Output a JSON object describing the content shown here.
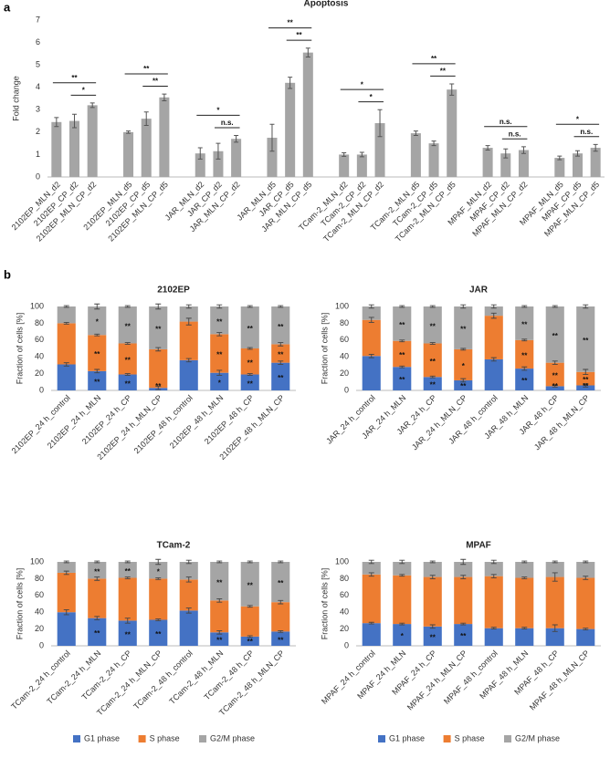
{
  "panel_labels": [
    "a",
    "b"
  ],
  "chart_data": [
    {
      "type": "bar",
      "title": "Apoptosis",
      "y_label": "Fold change",
      "color": "#a5a5a5",
      "group_size": 3,
      "categories": [
        "2102EP_MLN_d2",
        "2102EP_CP_d2",
        "2102EP_MLN_CP_d2",
        "2102EP_MLN_d5",
        "2102EP_CP_d5",
        "2102EP_MLN_CP_d5",
        "JAR_MLN_d2",
        "JAR_CP_d2",
        "JAR_MLN_CP_d2",
        "JAR_MLN_d5",
        "JAR_CP_d5",
        "JAR_MLN_CP_d5",
        "TCam-2_MLN_d2",
        "TCam-2_CP_d2",
        "TCam-2_MLN_CP_d2",
        "TCam-2_MLN_d5",
        "TCam-2_CP_d5",
        "TCam-2_MLN_CP_d5",
        "MPAF_MLN_d2",
        "MPAF_CP_d2",
        "MPAF_MLN_CP_d2",
        "MPAF_MLN_d5",
        "MPAF_CP_d5",
        "MPAF_MLN_CP_d5"
      ],
      "values": [
        2.45,
        2.5,
        3.2,
        2.0,
        2.6,
        3.55,
        1.05,
        1.15,
        1.7,
        1.75,
        4.2,
        5.55,
        1.0,
        1.0,
        2.4,
        1.95,
        1.5,
        3.9,
        1.3,
        1.05,
        1.2,
        0.85,
        1.05,
        1.3
      ],
      "errors": [
        0.2,
        0.3,
        0.1,
        0.05,
        0.3,
        0.15,
        0.25,
        0.35,
        0.15,
        0.6,
        0.25,
        0.2,
        0.08,
        0.1,
        0.6,
        0.1,
        0.1,
        0.25,
        0.1,
        0.2,
        0.15,
        0.08,
        0.12,
        0.15
      ],
      "ylim": [
        0,
        7
      ],
      "yticks": [
        0,
        1,
        2,
        3,
        4,
        5,
        6,
        7
      ],
      "annotations": [
        {
          "from": 0,
          "to": 2,
          "label": "**"
        },
        {
          "from": 1,
          "to": 2,
          "label": "*"
        },
        {
          "from": 3,
          "to": 5,
          "label": "**"
        },
        {
          "from": 4,
          "to": 5,
          "label": "**"
        },
        {
          "from": 6,
          "to": 8,
          "label": "*"
        },
        {
          "from": 7,
          "to": 8,
          "label": "n.s."
        },
        {
          "from": 9,
          "to": 11,
          "label": "**"
        },
        {
          "from": 10,
          "to": 11,
          "label": "**"
        },
        {
          "from": 12,
          "to": 14,
          "label": "*"
        },
        {
          "from": 13,
          "to": 14,
          "label": "*"
        },
        {
          "from": 15,
          "to": 17,
          "label": "**"
        },
        {
          "from": 16,
          "to": 17,
          "label": "**"
        },
        {
          "from": 18,
          "to": 20,
          "label": "n.s."
        },
        {
          "from": 19,
          "to": 20,
          "label": "n.s."
        },
        {
          "from": 21,
          "to": 23,
          "label": "*"
        },
        {
          "from": 22,
          "to": 23,
          "label": "n.s."
        }
      ]
    },
    {
      "type": "stacked_bar",
      "title": "2102EP",
      "y_label": "Fraction of cells [%]",
      "ylim": [
        0,
        100
      ],
      "yticks": [
        0,
        20,
        40,
        60,
        80,
        100
      ],
      "categories": [
        "2102EP_24 h_control",
        "2102EP_24 h_MLN",
        "2102EP_24 h_CP",
        "2102EP_24 h_MLN_CP",
        "2102EP_48 h_control",
        "2102EP_48 h_MLN",
        "2102EP_48 h_CP",
        "2102EP_48 h_MLN_CP"
      ],
      "series": [
        {
          "color": "#4472c4",
          "values": [
            31,
            23,
            19,
            3,
            36,
            21,
            19,
            33
          ],
          "errors": [
            2,
            2,
            1,
            2,
            2,
            3,
            1,
            2
          ],
          "significance": [
            null,
            "**",
            "**",
            "**",
            null,
            "*",
            "**",
            "**"
          ]
        },
        {
          "color": "#ed7d31",
          "values": [
            49,
            43,
            37,
            46,
            46,
            46,
            31,
            22
          ],
          "errors": [
            1,
            1,
            1,
            2,
            4,
            2,
            1,
            2
          ],
          "significance": [
            null,
            "**",
            "**",
            null,
            null,
            "**",
            "**",
            "**"
          ]
        },
        {
          "color": "#a5a5a5",
          "values": [
            20,
            34,
            44,
            51,
            18,
            33,
            50,
            45
          ],
          "errors": [
            1,
            3,
            1,
            3,
            2,
            2,
            1,
            1
          ],
          "significance": [
            null,
            "*",
            "**",
            "**",
            null,
            "**",
            "**",
            "**"
          ]
        }
      ]
    },
    {
      "type": "stacked_bar",
      "title": "JAR",
      "y_label": "Fraction of cells [%]",
      "ylim": [
        0,
        100
      ],
      "yticks": [
        0,
        20,
        40,
        60,
        80,
        100
      ],
      "categories": [
        "JAR_24 h_control",
        "JAR_24 h_MLN",
        "JAR_24 h_CP",
        "JAR_24 h_MLN_CP",
        "JAR_48 h_control",
        "JAR_48 h_MLN",
        "JAR_48 h_CP",
        "JAR_48 h_MLN_CP"
      ],
      "series": [
        {
          "color": "#4472c4",
          "values": [
            41,
            28,
            16,
            12,
            37,
            26,
            5,
            6
          ],
          "errors": [
            2,
            1,
            1,
            2,
            2,
            2,
            1,
            2
          ],
          "significance": [
            null,
            "**",
            "**",
            "**",
            null,
            "**",
            "**",
            "**"
          ]
        },
        {
          "color": "#ed7d31",
          "values": [
            43,
            31,
            40,
            37,
            52,
            34,
            28,
            16
          ],
          "errors": [
            3,
            1,
            1,
            1,
            3,
            1,
            2,
            3
          ],
          "significance": [
            null,
            "**",
            "**",
            "*",
            null,
            "**",
            "**",
            "**"
          ]
        },
        {
          "color": "#a5a5a5",
          "values": [
            16,
            41,
            44,
            51,
            11,
            40,
            67,
            78
          ],
          "errors": [
            2,
            1,
            1,
            2,
            2,
            1,
            1,
            2
          ],
          "significance": [
            null,
            "**",
            "**",
            "**",
            null,
            "**",
            "**",
            "**"
          ]
        }
      ]
    },
    {
      "type": "stacked_bar",
      "title": "TCam-2",
      "y_label": "Fraction of cells [%]",
      "ylim": [
        0,
        100
      ],
      "yticks": [
        0,
        20,
        40,
        60,
        80,
        100
      ],
      "legend": "bottom",
      "categories": [
        "TCam-2_24 h_control",
        "TCam-2_24 h_MLN",
        "TCam-2_24 h_CP",
        "TCam-2_24 h_MLN_CP",
        "TCam-2_48 h_control",
        "TCam-2_48 h_MLN",
        "TCam-2_48 h_CP",
        "TCam-2_48 h_MLN_CP"
      ],
      "series": [
        {
          "name": "G1 phase",
          "color": "#4472c4",
          "values": [
            40,
            33,
            30,
            31,
            42,
            16,
            11,
            17
          ],
          "errors": [
            3,
            2,
            3,
            1,
            3,
            2,
            1,
            1
          ],
          "significance": [
            null,
            "**",
            "**",
            "**",
            null,
            "**",
            "**",
            "**"
          ]
        },
        {
          "name": "S phase",
          "color": "#ed7d31",
          "values": [
            47,
            47,
            51,
            49,
            37,
            38,
            36,
            35
          ],
          "errors": [
            2,
            2,
            1,
            1,
            3,
            2,
            1,
            2
          ],
          "significance": [
            null,
            null,
            null,
            null,
            null,
            null,
            null,
            null
          ]
        },
        {
          "name": "G2/M phase",
          "color": "#a5a5a5",
          "values": [
            13,
            20,
            19,
            20,
            21,
            46,
            53,
            48
          ],
          "errors": [
            1,
            1,
            1,
            3,
            2,
            1,
            1,
            1
          ],
          "significance": [
            null,
            "**",
            "**",
            "*",
            null,
            "**",
            "**",
            "**"
          ]
        }
      ]
    },
    {
      "type": "stacked_bar",
      "title": "MPAF",
      "y_label": "Fraction of cells [%]",
      "ylim": [
        0,
        100
      ],
      "yticks": [
        0,
        20,
        40,
        60,
        80,
        100
      ],
      "legend": "bottom",
      "categories": [
        "MPAF_24 h_control",
        "MPAF_24 h_MLN",
        "MPAF_24 h_CP",
        "MPAF_24 h_MLN_CP",
        "MPAF_48 h_control",
        "MPAF_48 h_MLN",
        "MPAF_48 h_CP",
        "MPAF_48 h_MLN_CP"
      ],
      "series": [
        {
          "name": "G1 phase",
          "color": "#4472c4",
          "values": [
            27,
            26,
            23,
            26,
            21,
            21,
            21,
            20
          ],
          "errors": [
            1,
            1,
            2,
            1,
            1,
            1,
            4,
            1
          ],
          "significance": [
            null,
            "*",
            "**",
            "**",
            null,
            null,
            null,
            null
          ]
        },
        {
          "name": "S phase",
          "color": "#ed7d31",
          "values": [
            58,
            58,
            59,
            56,
            62,
            60,
            61,
            61
          ],
          "errors": [
            2,
            1,
            2,
            2,
            2,
            1,
            5,
            2
          ],
          "significance": [
            null,
            null,
            null,
            null,
            null,
            null,
            null,
            null
          ]
        },
        {
          "name": "G2/M phase",
          "color": "#a5a5a5",
          "values": [
            15,
            16,
            18,
            18,
            17,
            19,
            18,
            19
          ],
          "errors": [
            2,
            2,
            1,
            3,
            2,
            1,
            1,
            1
          ],
          "significance": [
            null,
            null,
            null,
            null,
            null,
            null,
            null,
            null
          ]
        }
      ]
    }
  ]
}
